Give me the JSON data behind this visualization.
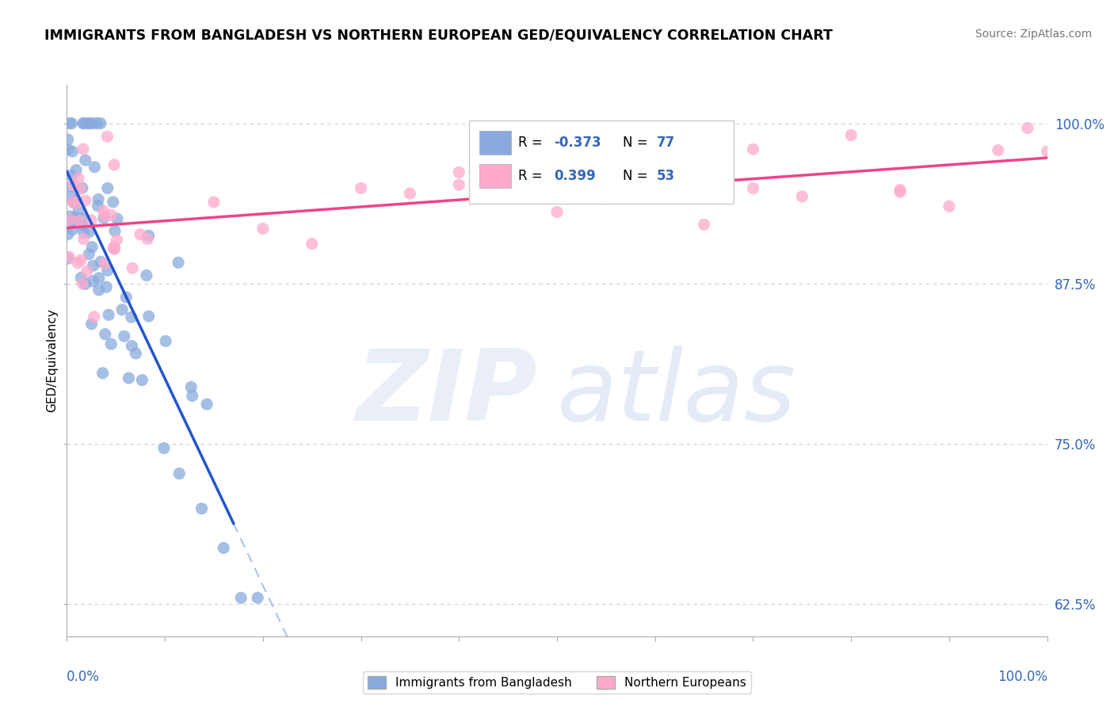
{
  "title": "IMMIGRANTS FROM BANGLADESH VS NORTHERN EUROPEAN GED/EQUIVALENCY CORRELATION CHART",
  "source": "Source: ZipAtlas.com",
  "ylabel": "GED/Equivalency",
  "yticks": [
    62.5,
    75.0,
    87.5,
    100.0
  ],
  "ytick_labels": [
    "62.5%",
    "75.0%",
    "87.5%",
    "100.0%"
  ],
  "blue_color": "#88AADD",
  "pink_color": "#FFAACC",
  "blue_line_color": "#2255CC",
  "pink_line_color": "#EE4488",
  "blue_dash_color": "#88AADD",
  "xmin": 0,
  "xmax": 100,
  "ymin": 60,
  "ymax": 103,
  "legend_label1": "Immigrants from Bangladesh",
  "legend_label2": "Northern Europeans",
  "watermark_zip": "ZIP",
  "watermark_atlas": "atlas",
  "tick_color": "#3366BB"
}
